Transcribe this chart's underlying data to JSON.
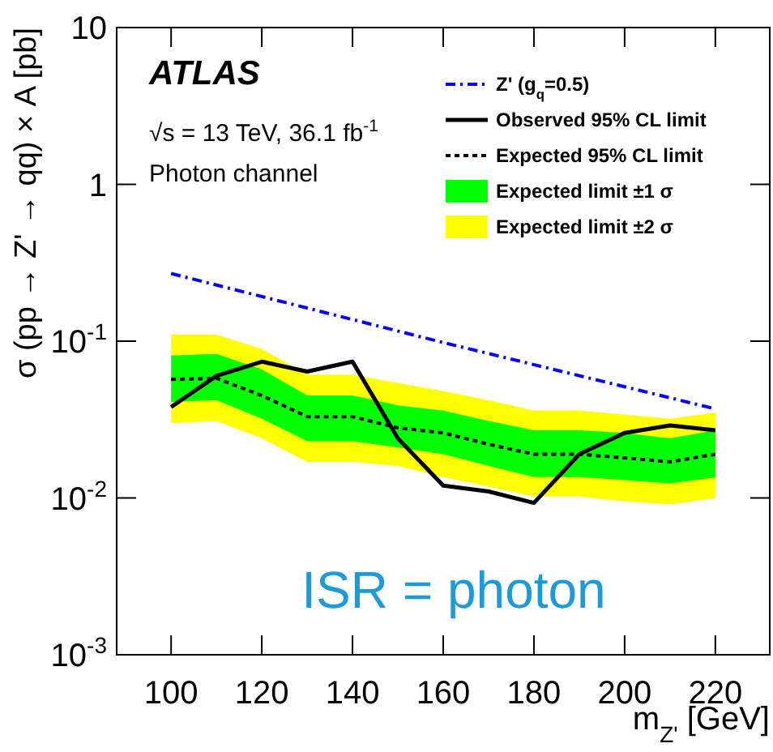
{
  "chart_data": {
    "type": "line",
    "xlabel": "m$_{Z'}$ [GeV]",
    "ylabel": "σ (pp → Z' → qq) × A [pb]",
    "x": [
      100,
      110,
      120,
      130,
      140,
      150,
      160,
      170,
      180,
      190,
      200,
      210,
      220
    ],
    "series": [
      {
        "name": "Expected limit ±2 σ",
        "type": "area",
        "color": "#ffff00",
        "values": [
          null,
          null,
          null,
          null,
          null,
          null,
          null,
          null,
          null,
          null,
          null,
          null,
          null
        ],
        "lower": [
          0.03,
          0.031,
          0.024,
          0.017,
          0.017,
          0.016,
          0.0136,
          0.0118,
          0.0102,
          0.0102,
          0.0095,
          0.0091,
          0.01
        ],
        "upper": [
          0.11,
          0.11,
          0.089,
          0.061,
          0.061,
          0.054,
          0.048,
          0.042,
          0.036,
          0.036,
          0.034,
          0.032,
          0.035
        ]
      },
      {
        "name": "Expected limit ±1 σ",
        "type": "area",
        "color": "#00ff00",
        "values": [
          null,
          null,
          null,
          null,
          null,
          null,
          null,
          null,
          null,
          null,
          null,
          null,
          null
        ],
        "lower": [
          0.041,
          0.042,
          0.032,
          0.023,
          0.023,
          0.021,
          0.019,
          0.016,
          0.0136,
          0.0136,
          0.013,
          0.0124,
          0.0135
        ],
        "upper": [
          0.081,
          0.083,
          0.066,
          0.045,
          0.045,
          0.039,
          0.036,
          0.031,
          0.027,
          0.027,
          0.026,
          0.024,
          0.027
        ]
      },
      {
        "name": "Z' (g$_{q}$=0.5)",
        "type": "line",
        "color": "#0000ff",
        "line_style": "dashed",
        "x": [
          100,
          160,
          220
        ],
        "values": [
          0.27,
          0.098,
          0.037
        ]
      },
      {
        "name": "Observed 95% CL limit",
        "type": "line",
        "color": "#000000",
        "line_style": "solid",
        "values": [
          0.038,
          0.06,
          0.074,
          0.064,
          0.074,
          0.024,
          0.012,
          0.011,
          0.0093,
          0.019,
          0.026,
          0.029,
          0.027
        ]
      },
      {
        "name": "Expected 95% CL limit",
        "color": "#000000",
        "line_style": "dotted",
        "values": [
          0.057,
          0.058,
          0.045,
          0.033,
          0.033,
          0.028,
          0.026,
          0.022,
          0.019,
          0.019,
          0.018,
          0.017,
          0.019
        ]
      }
    ],
    "xlim": [
      88,
      232
    ],
    "xticks": [
      100,
      120,
      140,
      160,
      180,
      200,
      220
    ],
    "ylim": [
      0.001,
      10
    ],
    "yticks": [
      {
        "value": 0.001,
        "label": "10$^{-3}$"
      },
      {
        "value": 0.01,
        "label": "10$^{-2}$"
      },
      {
        "value": 0.1,
        "label": "10$^{-1}$"
      },
      1,
      10
    ],
    "log": true,
    "grid": false,
    "legend": "top right",
    "annotations": [
      "ATLAS",
      "√s = 13 TeV, 36.1 fb$^{-1}$",
      "Photon channel",
      "ISR = photon"
    ]
  }
}
